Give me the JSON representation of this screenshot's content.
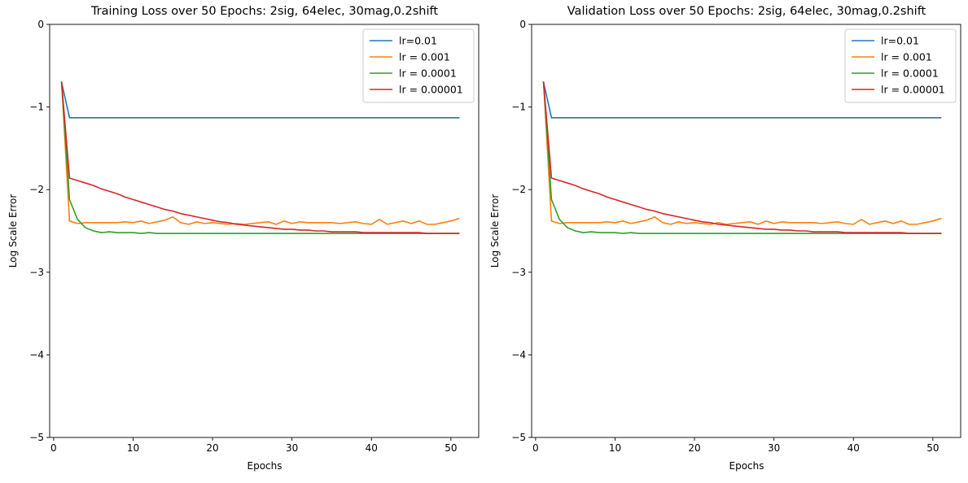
{
  "chart_data": [
    {
      "type": "line",
      "title": "Training Loss over 50 Epochs: 2sig, 64elec, 30mag,0.2shift",
      "xlabel": "Epochs",
      "ylabel": "Log Scale Error",
      "xlim": [
        -0.5,
        53.5
      ],
      "ylim": [
        -5,
        0
      ],
      "xticks": [
        0,
        10,
        20,
        30,
        40,
        50
      ],
      "yticks": [
        0,
        -1,
        -2,
        -3,
        -4,
        -5
      ],
      "ytick_labels": [
        "0",
        "−1",
        "−2",
        "−3",
        "−4",
        "−5"
      ],
      "grid": false,
      "legend": "top-right",
      "x": [
        1,
        2,
        3,
        4,
        5,
        6,
        7,
        8,
        9,
        10,
        11,
        12,
        13,
        14,
        15,
        16,
        17,
        18,
        19,
        20,
        21,
        22,
        23,
        24,
        25,
        26,
        27,
        28,
        29,
        30,
        31,
        32,
        33,
        34,
        35,
        36,
        37,
        38,
        39,
        40,
        41,
        42,
        43,
        44,
        45,
        46,
        47,
        48,
        49,
        50,
        51
      ],
      "series": [
        {
          "name": "lr=0.01",
          "color": "#1f77b4",
          "values": [
            -0.7,
            -1.13,
            -1.13,
            -1.13,
            -1.13,
            -1.13,
            -1.13,
            -1.13,
            -1.13,
            -1.13,
            -1.13,
            -1.13,
            -1.13,
            -1.13,
            -1.13,
            -1.13,
            -1.13,
            -1.13,
            -1.13,
            -1.13,
            -1.13,
            -1.13,
            -1.13,
            -1.13,
            -1.13,
            -1.13,
            -1.13,
            -1.13,
            -1.13,
            -1.13,
            -1.13,
            -1.13,
            -1.13,
            -1.13,
            -1.13,
            -1.13,
            -1.13,
            -1.13,
            -1.13,
            -1.13,
            -1.13,
            -1.13,
            -1.13,
            -1.13,
            -1.13,
            -1.13,
            -1.13,
            -1.13,
            -1.13,
            -1.13,
            -1.13
          ]
        },
        {
          "name": "lr = 0.001",
          "color": "#ff7f0e",
          "values": [
            -0.7,
            -2.38,
            -2.41,
            -2.4,
            -2.4,
            -2.4,
            -2.4,
            -2.4,
            -2.39,
            -2.4,
            -2.38,
            -2.41,
            -2.39,
            -2.37,
            -2.33,
            -2.4,
            -2.42,
            -2.39,
            -2.41,
            -2.4,
            -2.41,
            -2.42,
            -2.41,
            -2.42,
            -2.41,
            -2.4,
            -2.39,
            -2.42,
            -2.38,
            -2.41,
            -2.39,
            -2.4,
            -2.4,
            -2.4,
            -2.4,
            -2.41,
            -2.4,
            -2.39,
            -2.41,
            -2.42,
            -2.36,
            -2.42,
            -2.4,
            -2.38,
            -2.41,
            -2.38,
            -2.42,
            -2.42,
            -2.4,
            -2.38,
            -2.35
          ]
        },
        {
          "name": "lr = 0.0001",
          "color": "#2ca02c",
          "values": [
            -0.7,
            -2.12,
            -2.36,
            -2.46,
            -2.5,
            -2.52,
            -2.51,
            -2.52,
            -2.52,
            -2.52,
            -2.53,
            -2.52,
            -2.53,
            -2.53,
            -2.53,
            -2.53,
            -2.53,
            -2.53,
            -2.53,
            -2.53,
            -2.53,
            -2.53,
            -2.53,
            -2.53,
            -2.53,
            -2.53,
            -2.53,
            -2.53,
            -2.53,
            -2.53,
            -2.53,
            -2.53,
            -2.53,
            -2.53,
            -2.53,
            -2.53,
            -2.53,
            -2.53,
            -2.53,
            -2.53,
            -2.53,
            -2.53,
            -2.53,
            -2.53,
            -2.53,
            -2.53,
            -2.53,
            -2.53,
            -2.53,
            -2.53,
            -2.53
          ]
        },
        {
          "name": "lr = 0.00001",
          "color": "#d62728",
          "values": [
            -0.7,
            -1.86,
            -1.89,
            -1.92,
            -1.95,
            -1.99,
            -2.02,
            -2.05,
            -2.09,
            -2.12,
            -2.15,
            -2.18,
            -2.21,
            -2.24,
            -2.26,
            -2.29,
            -2.31,
            -2.33,
            -2.35,
            -2.37,
            -2.39,
            -2.4,
            -2.42,
            -2.43,
            -2.44,
            -2.45,
            -2.46,
            -2.47,
            -2.48,
            -2.48,
            -2.49,
            -2.49,
            -2.5,
            -2.5,
            -2.51,
            -2.51,
            -2.51,
            -2.51,
            -2.52,
            -2.52,
            -2.52,
            -2.52,
            -2.52,
            -2.52,
            -2.52,
            -2.52,
            -2.53,
            -2.53,
            -2.53,
            -2.53,
            -2.53
          ]
        }
      ]
    },
    {
      "type": "line",
      "title": "Validation Loss over 50 Epochs: 2sig, 64elec, 30mag,0.2shift",
      "xlabel": "Epochs",
      "ylabel": "Log Scale Error",
      "xlim": [
        -0.5,
        53.5
      ],
      "ylim": [
        -5,
        0
      ],
      "xticks": [
        0,
        10,
        20,
        30,
        40,
        50
      ],
      "yticks": [
        0,
        -1,
        -2,
        -3,
        -4,
        -5
      ],
      "ytick_labels": [
        "0",
        "−1",
        "−2",
        "−3",
        "−4",
        "−5"
      ],
      "grid": false,
      "legend": "top-right",
      "x": [
        1,
        2,
        3,
        4,
        5,
        6,
        7,
        8,
        9,
        10,
        11,
        12,
        13,
        14,
        15,
        16,
        17,
        18,
        19,
        20,
        21,
        22,
        23,
        24,
        25,
        26,
        27,
        28,
        29,
        30,
        31,
        32,
        33,
        34,
        35,
        36,
        37,
        38,
        39,
        40,
        41,
        42,
        43,
        44,
        45,
        46,
        47,
        48,
        49,
        50,
        51
      ],
      "series": [
        {
          "name": "lr=0.01",
          "color": "#1f77b4",
          "values": [
            -0.7,
            -1.13,
            -1.13,
            -1.13,
            -1.13,
            -1.13,
            -1.13,
            -1.13,
            -1.13,
            -1.13,
            -1.13,
            -1.13,
            -1.13,
            -1.13,
            -1.13,
            -1.13,
            -1.13,
            -1.13,
            -1.13,
            -1.13,
            -1.13,
            -1.13,
            -1.13,
            -1.13,
            -1.13,
            -1.13,
            -1.13,
            -1.13,
            -1.13,
            -1.13,
            -1.13,
            -1.13,
            -1.13,
            -1.13,
            -1.13,
            -1.13,
            -1.13,
            -1.13,
            -1.13,
            -1.13,
            -1.13,
            -1.13,
            -1.13,
            -1.13,
            -1.13,
            -1.13,
            -1.13,
            -1.13,
            -1.13,
            -1.13,
            -1.13
          ]
        },
        {
          "name": "lr = 0.001",
          "color": "#ff7f0e",
          "values": [
            -0.7,
            -2.38,
            -2.41,
            -2.4,
            -2.4,
            -2.4,
            -2.4,
            -2.4,
            -2.39,
            -2.4,
            -2.38,
            -2.41,
            -2.39,
            -2.37,
            -2.33,
            -2.4,
            -2.42,
            -2.39,
            -2.41,
            -2.4,
            -2.41,
            -2.42,
            -2.4,
            -2.42,
            -2.41,
            -2.4,
            -2.39,
            -2.42,
            -2.38,
            -2.41,
            -2.39,
            -2.4,
            -2.4,
            -2.4,
            -2.4,
            -2.41,
            -2.4,
            -2.39,
            -2.41,
            -2.42,
            -2.36,
            -2.42,
            -2.4,
            -2.38,
            -2.41,
            -2.38,
            -2.42,
            -2.42,
            -2.4,
            -2.38,
            -2.35
          ]
        },
        {
          "name": "lr = 0.0001",
          "color": "#2ca02c",
          "values": [
            -0.7,
            -2.12,
            -2.36,
            -2.46,
            -2.5,
            -2.52,
            -2.51,
            -2.52,
            -2.52,
            -2.52,
            -2.53,
            -2.52,
            -2.53,
            -2.53,
            -2.53,
            -2.53,
            -2.53,
            -2.53,
            -2.53,
            -2.53,
            -2.53,
            -2.53,
            -2.53,
            -2.53,
            -2.53,
            -2.53,
            -2.53,
            -2.53,
            -2.53,
            -2.53,
            -2.53,
            -2.53,
            -2.53,
            -2.53,
            -2.53,
            -2.53,
            -2.53,
            -2.53,
            -2.53,
            -2.53,
            -2.53,
            -2.53,
            -2.53,
            -2.53,
            -2.53,
            -2.53,
            -2.53,
            -2.53,
            -2.53,
            -2.53,
            -2.53
          ]
        },
        {
          "name": "lr = 0.00001",
          "color": "#d62728",
          "values": [
            -0.7,
            -1.86,
            -1.89,
            -1.92,
            -1.95,
            -1.99,
            -2.02,
            -2.05,
            -2.09,
            -2.12,
            -2.15,
            -2.18,
            -2.21,
            -2.24,
            -2.26,
            -2.29,
            -2.31,
            -2.33,
            -2.35,
            -2.37,
            -2.39,
            -2.4,
            -2.42,
            -2.43,
            -2.44,
            -2.45,
            -2.46,
            -2.47,
            -2.48,
            -2.48,
            -2.49,
            -2.49,
            -2.5,
            -2.5,
            -2.51,
            -2.51,
            -2.51,
            -2.51,
            -2.52,
            -2.52,
            -2.52,
            -2.52,
            -2.52,
            -2.52,
            -2.52,
            -2.52,
            -2.53,
            -2.53,
            -2.53,
            -2.53,
            -2.53
          ]
        }
      ]
    }
  ]
}
